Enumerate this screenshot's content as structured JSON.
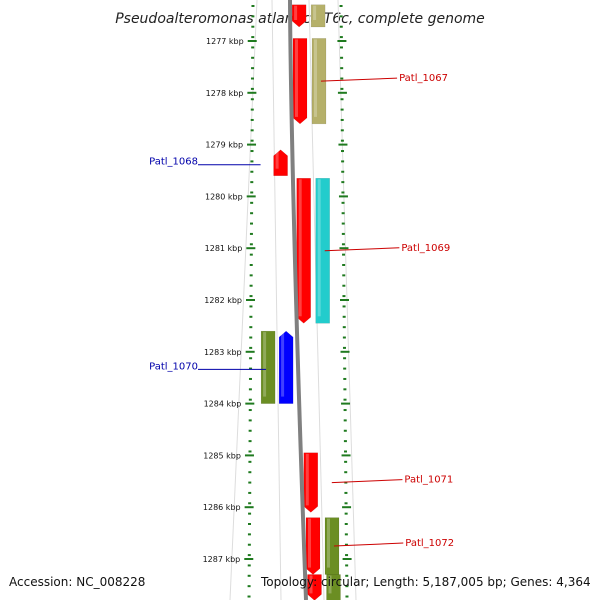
{
  "title": "Pseudoalteromonas atlantica T6c, complete genome",
  "footer": {
    "accession": "Accession: NC_008228",
    "summary": "Topology: circular; Length: 5,187,005 bp; Genes: 4,364"
  },
  "colors": {
    "backbone": "#808080",
    "ticks": "#1f7a1f",
    "strand_outline": "#dddddd",
    "label_forward": "#cc0000",
    "label_reverse": "#0000aa"
  },
  "ticks": [
    {
      "label": "1277 kbp",
      "kbp": 1277
    },
    {
      "label": "1278 kbp",
      "kbp": 1278
    },
    {
      "label": "1279 kbp",
      "kbp": 1279
    },
    {
      "label": "1280 kbp",
      "kbp": 1280
    },
    {
      "label": "1281 kbp",
      "kbp": 1281
    },
    {
      "label": "1282 kbp",
      "kbp": 1282
    },
    {
      "label": "1283 kbp",
      "kbp": 1283
    },
    {
      "label": "1284 kbp",
      "kbp": 1284
    },
    {
      "label": "1285 kbp",
      "kbp": 1285
    },
    {
      "label": "1286 kbp",
      "kbp": 1286
    },
    {
      "label": "1287 kbp",
      "kbp": 1287
    }
  ],
  "genes": [
    {
      "kind": "gene",
      "label": "",
      "strand": "forward",
      "start_kbp": 1276.3,
      "end_kbp": 1276.73,
      "color": "#ff0000"
    },
    {
      "kind": "cds",
      "label": "",
      "strand": "forward",
      "start_kbp": 1276.3,
      "end_kbp": 1276.73,
      "color": "#b5b06a"
    },
    {
      "kind": "gene",
      "label": "Patl_1067",
      "strand": "forward",
      "start_kbp": 1276.95,
      "end_kbp": 1278.6,
      "color": "#ff0000"
    },
    {
      "kind": "cds",
      "label": "",
      "strand": "forward",
      "start_kbp": 1276.95,
      "end_kbp": 1278.6,
      "color": "#b5b06a"
    },
    {
      "kind": "gene",
      "label": "Patl_1068",
      "strand": "reverse",
      "start_kbp": 1279.1,
      "end_kbp": 1279.6,
      "color": "#ff0000"
    },
    {
      "kind": "gene",
      "label": "Patl_1069",
      "strand": "forward",
      "start_kbp": 1279.65,
      "end_kbp": 1282.45,
      "color": "#ff0000"
    },
    {
      "kind": "cds",
      "label": "",
      "strand": "forward",
      "start_kbp": 1279.65,
      "end_kbp": 1282.45,
      "color": "#22cccc"
    },
    {
      "kind": "gene",
      "label": "Patl_1070",
      "strand": "reverse",
      "start_kbp": 1282.6,
      "end_kbp": 1284.0,
      "color": "#0000ff"
    },
    {
      "kind": "cds",
      "label": "",
      "strand": "reverse",
      "start_kbp": 1282.6,
      "end_kbp": 1284.0,
      "color": "#6b8e23"
    },
    {
      "kind": "gene",
      "label": "Patl_1071",
      "strand": "forward",
      "start_kbp": 1284.95,
      "end_kbp": 1286.1,
      "color": "#ff0000"
    },
    {
      "kind": "gene",
      "label": "Patl_1072",
      "strand": "forward",
      "start_kbp": 1286.2,
      "end_kbp": 1287.3,
      "color": "#ff0000"
    },
    {
      "kind": "cds",
      "label": "",
      "strand": "forward",
      "start_kbp": 1286.2,
      "end_kbp": 1287.3,
      "color": "#6b8e23"
    },
    {
      "kind": "gene",
      "label": "",
      "strand": "forward",
      "start_kbp": 1287.3,
      "end_kbp": 1287.8,
      "color": "#ff0000"
    },
    {
      "kind": "cds",
      "label": "",
      "strand": "forward",
      "start_kbp": 1287.3,
      "end_kbp": 1287.8,
      "color": "#6b8e23"
    }
  ]
}
